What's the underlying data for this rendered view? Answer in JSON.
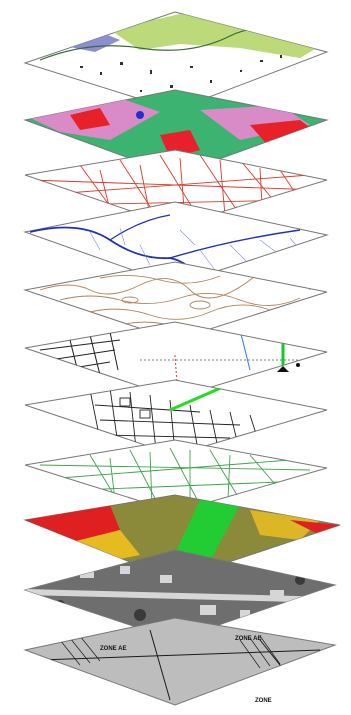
{
  "layers": [
    {
      "id": "land-cover",
      "fill": "#ffffff",
      "accent": "#b5d66a",
      "secondary": "#8a8fd0"
    },
    {
      "id": "land-use",
      "fill": "#3cb371",
      "accent": "#e8202a",
      "secondary": "#d98bc8"
    },
    {
      "id": "streets",
      "fill": "#ffffff",
      "accent": "#d93a2a"
    },
    {
      "id": "hydrography",
      "fill": "#ffffff",
      "accent": "#1f2fbf",
      "secondary": "#7a8fd8"
    },
    {
      "id": "contours",
      "fill": "#ffffff",
      "accent": "#b0825a"
    },
    {
      "id": "parcels-pipeline",
      "fill": "#ffffff",
      "accent": "#222222",
      "secondary": "#2a7de0",
      "highlight": "#11cc22"
    },
    {
      "id": "parcels",
      "fill": "#ffffff",
      "accent": "#222222",
      "highlight": "#22dd22"
    },
    {
      "id": "road-network",
      "fill": "#ffffff",
      "accent": "#3fa34d"
    },
    {
      "id": "elevation",
      "fill": "#8a8a3a",
      "accent": "#e02020",
      "secondary": "#22cc33",
      "tertiary": "#f0c020"
    },
    {
      "id": "aerial-photo",
      "fill": "#6e6e6e",
      "accent": "#d6d6d6"
    },
    {
      "id": "zoning",
      "fill": "#bdbdbd",
      "accent": "#1a1a1a"
    }
  ],
  "zoning_labels": [
    "ZONE AE",
    "ZONE AE",
    "ZONE"
  ]
}
